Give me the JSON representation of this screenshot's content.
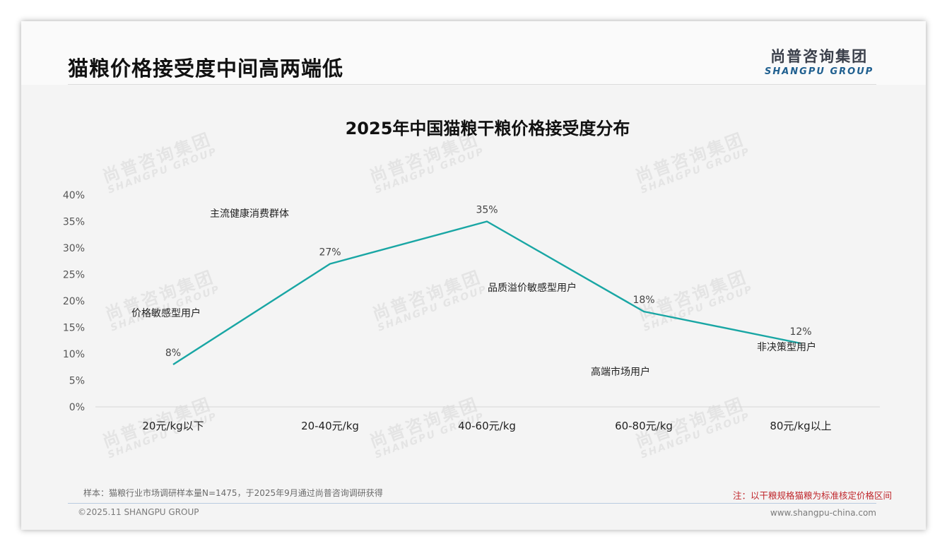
{
  "page_title": "猫粮价格接受度中间高两端低",
  "logo": {
    "cn": "尚普咨询集团",
    "en": "SHANGPU GROUP"
  },
  "watermark": {
    "cn": "尚普咨询集团",
    "en": "SHANGPU GROUP"
  },
  "chart_data": {
    "type": "line",
    "title": "2025年中国猫粮干粮价格接受度分布",
    "categories": [
      "20元/kg以下",
      "20-40元/kg",
      "40-60元/kg",
      "60-80元/kg",
      "80元/kg以上"
    ],
    "values": [
      8,
      27,
      35,
      18,
      12
    ],
    "data_labels": [
      "8%",
      "27%",
      "35%",
      "18%",
      "12%"
    ],
    "ylim": [
      0,
      40
    ],
    "yticks": [
      "0%",
      "5%",
      "10%",
      "15%",
      "20%",
      "25%",
      "30%",
      "35%",
      "40%"
    ],
    "grid": false,
    "line_color": "#19a6a4",
    "annotations": [
      "价格敏感型用户",
      "主流健康消费群体",
      "品质溢价敏感型用户",
      "高端市场用户",
      "非决策型用户"
    ]
  },
  "footer": {
    "sample": "样本：猫粮行业市场调研样本量N=1475，于2025年9月通过尚普咨询调研获得",
    "note": "注：以干粮规格猫粮为标准核定价格区间",
    "copyright": "©2025.11 SHANGPU GROUP",
    "website": "www.shangpu-china.com"
  }
}
